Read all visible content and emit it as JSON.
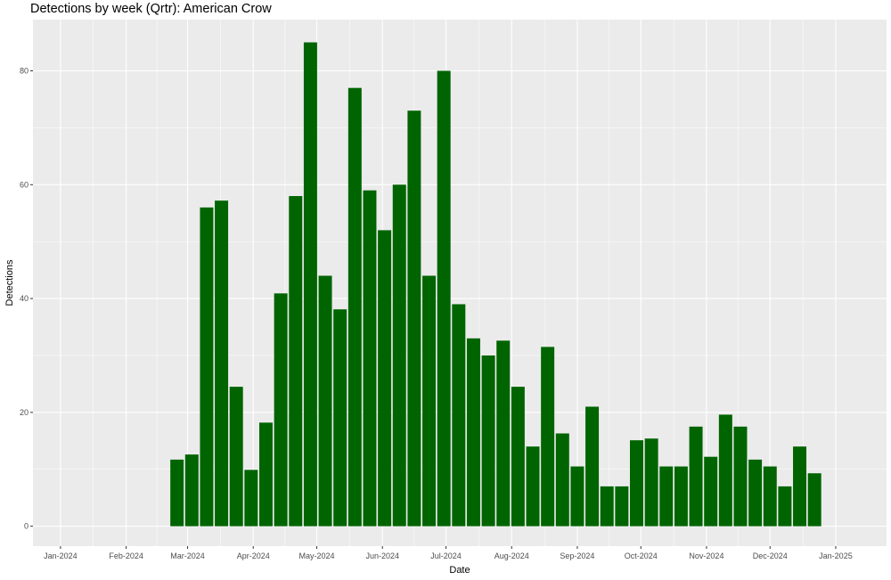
{
  "chart_data": {
    "type": "bar",
    "title": "Detections by week (Qrtr): American Crow",
    "xlabel": "Date",
    "ylabel": "Detections",
    "ylim": [
      -3.5,
      89
    ],
    "xlim": [
      "2023-12-19",
      "2025-01-25"
    ],
    "bar_color": "#006400",
    "panel_color": "#EBEBEB",
    "grid": true,
    "y_ticks": [
      0,
      20,
      40,
      60,
      80
    ],
    "x_ticks": [
      {
        "date": "2024-01-01",
        "label": "Jan-2024"
      },
      {
        "date": "2024-02-01",
        "label": "Feb-2024"
      },
      {
        "date": "2024-03-01",
        "label": "Mar-2024"
      },
      {
        "date": "2024-04-01",
        "label": "Apr-2024"
      },
      {
        "date": "2024-05-01",
        "label": "May-2024"
      },
      {
        "date": "2024-06-01",
        "label": "Jun-2024"
      },
      {
        "date": "2024-07-01",
        "label": "Jul-2024"
      },
      {
        "date": "2024-08-01",
        "label": "Aug-2024"
      },
      {
        "date": "2024-09-01",
        "label": "Sep-2024"
      },
      {
        "date": "2024-10-01",
        "label": "Oct-2024"
      },
      {
        "date": "2024-11-01",
        "label": "Nov-2024"
      },
      {
        "date": "2024-12-01",
        "label": "Dec-2024"
      },
      {
        "date": "2025-01-01",
        "label": "Jan-2025"
      }
    ],
    "x": [
      "2024-02-25",
      "2024-03-03",
      "2024-03-10",
      "2024-03-17",
      "2024-03-24",
      "2024-03-31",
      "2024-04-07",
      "2024-04-14",
      "2024-04-21",
      "2024-04-28",
      "2024-05-05",
      "2024-05-12",
      "2024-05-19",
      "2024-05-26",
      "2024-06-02",
      "2024-06-09",
      "2024-06-16",
      "2024-06-23",
      "2024-06-30",
      "2024-07-07",
      "2024-07-14",
      "2024-07-21",
      "2024-07-28",
      "2024-08-04",
      "2024-08-11",
      "2024-08-18",
      "2024-08-25",
      "2024-09-01",
      "2024-09-08",
      "2024-09-15",
      "2024-09-22",
      "2024-09-29",
      "2024-10-06",
      "2024-10-13",
      "2024-10-20",
      "2024-10-27",
      "2024-11-03",
      "2024-11-10",
      "2024-11-17",
      "2024-11-24",
      "2024-12-01",
      "2024-12-08",
      "2024-12-15",
      "2024-12-22"
    ],
    "values": [
      11.7,
      12.6,
      56,
      57.2,
      24.5,
      9.9,
      18.2,
      40.9,
      58,
      85,
      44,
      38.1,
      77,
      59,
      52,
      60,
      73,
      44,
      80,
      39,
      33,
      30,
      32.6,
      24.5,
      14,
      31.5,
      16.3,
      10.5,
      21,
      7,
      7,
      15.1,
      15.4,
      10.5,
      10.5,
      17.5,
      12.2,
      19.6,
      17.5,
      11.7,
      10.5,
      7,
      14,
      9.3
    ]
  }
}
